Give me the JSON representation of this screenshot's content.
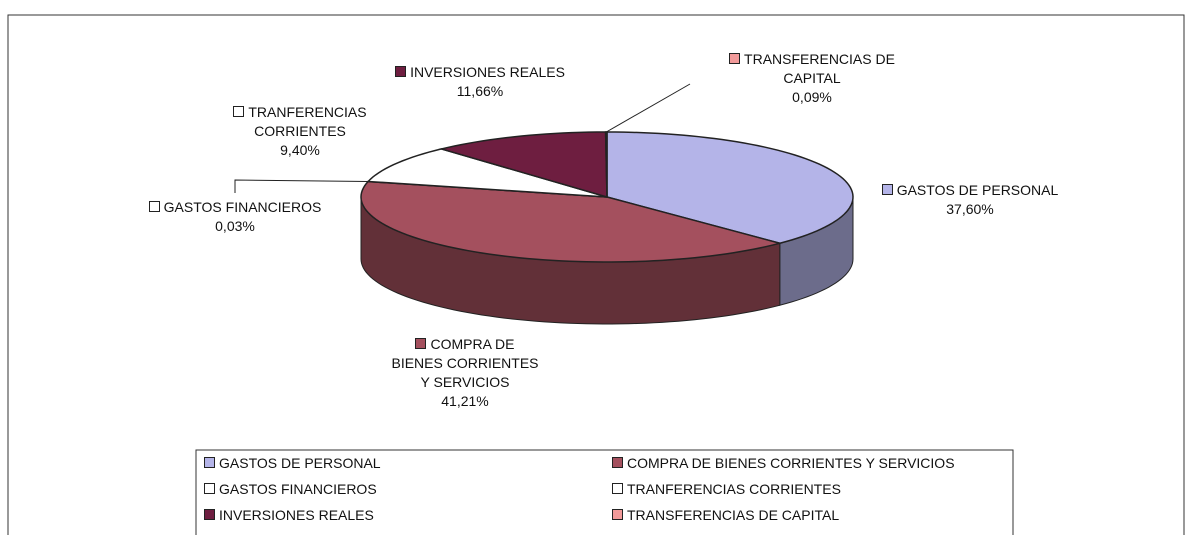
{
  "chart_data": {
    "type": "pie3d",
    "categories": [
      "GASTOS DE PERSONAL",
      "COMPRA DE BIENES CORRIENTES Y SERVICIOS",
      "GASTOS FINANCIEROS",
      "TRANFERENCIAS CORRIENTES",
      "INVERSIONES REALES",
      "TRANSFERENCIAS DE CAPITAL"
    ],
    "values": [
      37.6,
      41.21,
      0.03,
      9.4,
      11.66,
      0.09
    ],
    "value_labels": [
      "37,60%",
      "41,21%",
      "0,03%",
      "9,40%",
      "11,66%",
      "0,09%"
    ],
    "colors": [
      "#b4b4e8",
      "#a4505e",
      "#ffffff",
      "#ffffff",
      "#6e1e40",
      "#f29a9a"
    ],
    "legend": "bottom"
  }
}
